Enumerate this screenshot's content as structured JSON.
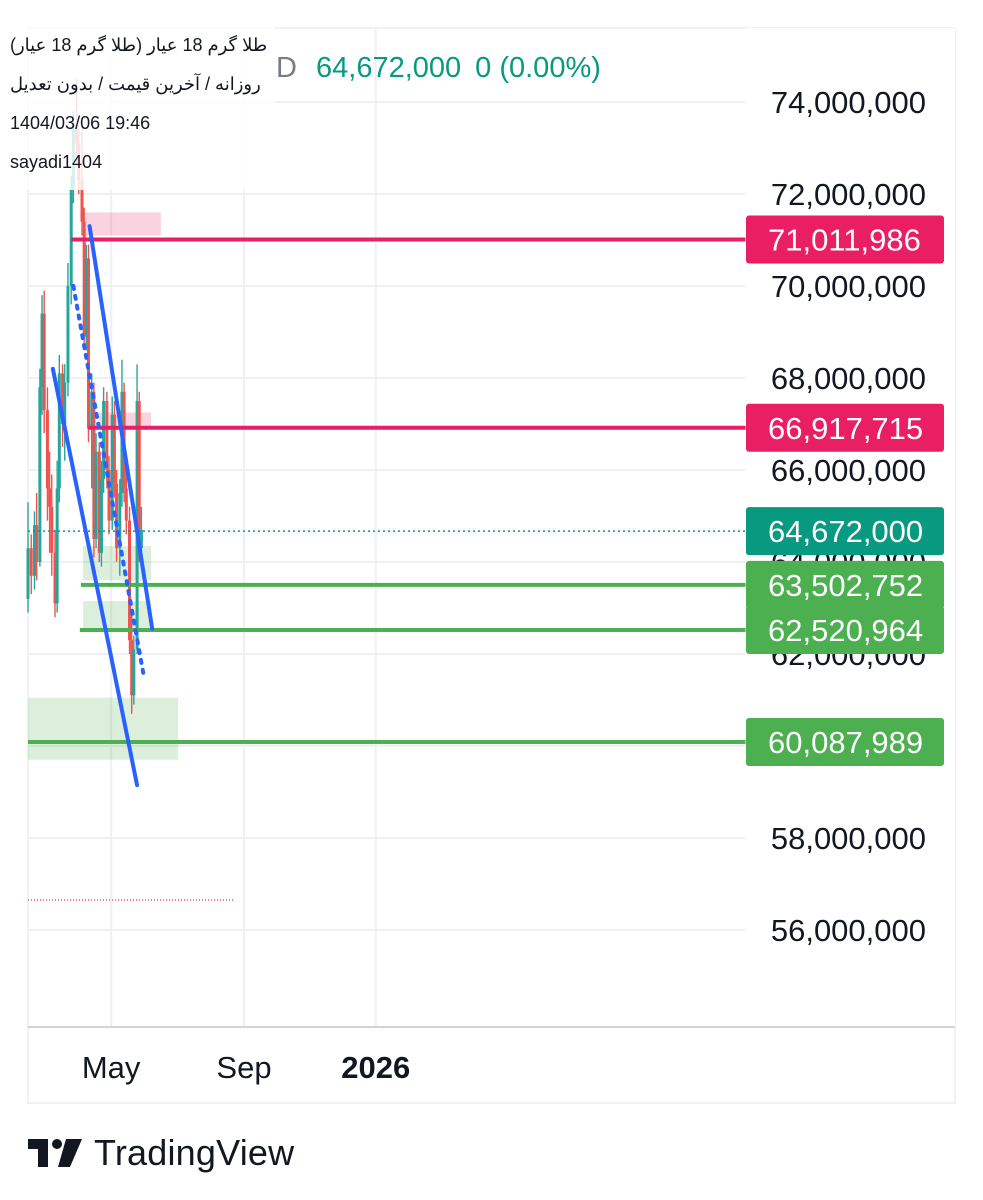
{
  "header": {
    "symbol_name": "طلا گرم 18 عیار (طلا گرم 18 عیار)",
    "settings": "روزانه / آخرین قیمت / بدون تعدیل",
    "datetime": "1404/03/06 19:46",
    "author": "sayadi1404",
    "ticker_fragment": "D",
    "last_price": "64,672,000",
    "change": "0 (0.00%)"
  },
  "brand": {
    "name": "TradingView"
  },
  "colors": {
    "grid": "#eef0f3",
    "up": "#26a69a",
    "down": "#ef5350",
    "resistance": "#e91e63",
    "support": "#4caf50",
    "trend": "#2962ff",
    "price_line": "#089981"
  },
  "chart_data": {
    "type": "candlestick",
    "y_axis": {
      "min": 55000000,
      "max": 75000000,
      "ticks": [
        56000000,
        58000000,
        60000000,
        62000000,
        64000000,
        66000000,
        68000000,
        70000000,
        72000000,
        74000000
      ],
      "tick_labels": [
        "56,000,000",
        "58,000,000",
        "60,000,000",
        "62,000,000",
        "64,000,000",
        "66,000,000",
        "68,000,000",
        "70,000,000",
        "72,000,000",
        "74,000,000"
      ]
    },
    "x_axis": {
      "labels": [
        "May",
        "Sep",
        "2026"
      ],
      "label_dates": [
        "2025-05-01",
        "2025-09-01",
        "2026-01-01"
      ],
      "start_date": "2025-02-13",
      "end_date": "2026-01-31"
    },
    "grid": true,
    "last_price": 64672000,
    "price_labels": [
      {
        "value": 71011986,
        "label": "71,011,986",
        "kind": "resistance"
      },
      {
        "value": 66917715,
        "label": "66,917,715",
        "kind": "resistance"
      },
      {
        "value": 64672000,
        "label": "64,672,000",
        "kind": "last"
      },
      {
        "value": 63502752,
        "label": "63,502,752",
        "kind": "support"
      },
      {
        "value": 62520964,
        "label": "62,520,964",
        "kind": "support"
      },
      {
        "value": 60087989,
        "label": "60,087,989",
        "kind": "support"
      }
    ],
    "horizontal_levels": [
      {
        "value": 71011986,
        "from": "2025-03-25",
        "kind": "resistance"
      },
      {
        "value": 66917715,
        "from": "2025-04-10",
        "kind": "resistance"
      },
      {
        "value": 63502752,
        "from": "2025-04-03",
        "kind": "support"
      },
      {
        "value": 62520964,
        "from": "2025-04-02",
        "kind": "support"
      },
      {
        "value": 60087989,
        "from": "2025-02-13",
        "kind": "support"
      }
    ],
    "zones": [
      {
        "from": "2025-04-05",
        "to": "2025-06-16",
        "high": 71600000,
        "low": 71100000,
        "kind": "resistance"
      },
      {
        "from": "2025-04-20",
        "to": "2025-06-07",
        "high": 67250000,
        "low": 66950000,
        "kind": "resistance"
      },
      {
        "from": "2025-04-05",
        "to": "2025-06-07",
        "high": 64350000,
        "low": 63600000,
        "kind": "support"
      },
      {
        "from": "2025-04-05",
        "to": "2025-06-07",
        "high": 63150000,
        "low": 62550000,
        "kind": "support"
      },
      {
        "from": "2025-02-13",
        "to": "2025-07-02",
        "high": 61050000,
        "low": 59700000,
        "kind": "support"
      }
    ],
    "trendlines": [
      {
        "start": [
          "2025-04-11",
          71300000
        ],
        "end": [
          "2025-06-08",
          62550000
        ],
        "style": "solid"
      },
      {
        "start": [
          "2025-03-08",
          68200000
        ],
        "end": [
          "2025-05-25",
          59150000
        ],
        "style": "solid"
      },
      {
        "start": [
          "2025-03-27",
          70000000
        ],
        "end": [
          "2025-05-31",
          61550000
        ],
        "style": "dotted"
      }
    ],
    "candles": [
      {
        "date": "2025-02-13",
        "o": 63200000,
        "h": 65300000,
        "l": 62900000,
        "c": 64300000
      },
      {
        "date": "2025-02-16",
        "o": 64300000,
        "h": 64600000,
        "l": 63300000,
        "c": 63700000
      },
      {
        "date": "2025-02-19",
        "o": 63700000,
        "h": 65100000,
        "l": 63400000,
        "c": 64800000
      },
      {
        "date": "2025-02-21",
        "o": 64800000,
        "h": 65500000,
        "l": 63600000,
        "c": 64000000
      },
      {
        "date": "2025-02-24",
        "o": 64000000,
        "h": 68200000,
        "l": 63900000,
        "c": 67800000
      },
      {
        "date": "2025-02-26",
        "o": 67800000,
        "h": 69800000,
        "l": 67200000,
        "c": 69400000
      },
      {
        "date": "2025-02-28",
        "o": 69400000,
        "h": 69900000,
        "l": 66800000,
        "c": 67300000
      },
      {
        "date": "2025-03-03",
        "o": 67300000,
        "h": 67800000,
        "l": 64900000,
        "c": 65600000
      },
      {
        "date": "2025-03-05",
        "o": 65600000,
        "h": 66400000,
        "l": 64200000,
        "c": 65200000
      },
      {
        "date": "2025-03-07",
        "o": 65200000,
        "h": 65900000,
        "l": 63700000,
        "c": 64200000
      },
      {
        "date": "2025-03-10",
        "o": 64200000,
        "h": 64700000,
        "l": 62800000,
        "c": 63100000
      },
      {
        "date": "2025-03-12",
        "o": 63100000,
        "h": 66200000,
        "l": 62900000,
        "c": 65600000
      },
      {
        "date": "2025-03-14",
        "o": 65600000,
        "h": 68500000,
        "l": 65300000,
        "c": 68100000
      },
      {
        "date": "2025-03-17",
        "o": 68100000,
        "h": 68300000,
        "l": 66500000,
        "c": 67000000
      },
      {
        "date": "2025-03-19",
        "o": 67000000,
        "h": 68300000,
        "l": 66200000,
        "c": 67900000
      },
      {
        "date": "2025-03-22",
        "o": 67900000,
        "h": 70500000,
        "l": 67600000,
        "c": 70000000
      },
      {
        "date": "2025-03-25",
        "o": 70000000,
        "h": 72400000,
        "l": 69600000,
        "c": 72100000
      },
      {
        "date": "2025-03-27",
        "o": 72100000,
        "h": 73800000,
        "l": 71800000,
        "c": 73500000
      },
      {
        "date": "2025-03-30",
        "o": 73500000,
        "h": 74500000,
        "l": 72600000,
        "c": 73100000
      },
      {
        "date": "2025-04-01",
        "o": 73100000,
        "h": 73400000,
        "l": 72000000,
        "c": 72300000
      },
      {
        "date": "2025-04-04",
        "o": 72300000,
        "h": 73500000,
        "l": 71100000,
        "c": 71400000
      },
      {
        "date": "2025-04-06",
        "o": 71400000,
        "h": 71700000,
        "l": 68600000,
        "c": 68900000
      },
      {
        "date": "2025-04-08",
        "o": 68900000,
        "h": 70900000,
        "l": 68600000,
        "c": 70600000
      },
      {
        "date": "2025-04-10",
        "o": 70600000,
        "h": 70900000,
        "l": 66600000,
        "c": 66900000
      },
      {
        "date": "2025-04-13",
        "o": 66900000,
        "h": 68100000,
        "l": 65600000,
        "c": 67700000
      },
      {
        "date": "2025-04-15",
        "o": 67700000,
        "h": 67900000,
        "l": 64100000,
        "c": 64500000
      },
      {
        "date": "2025-04-17",
        "o": 64500000,
        "h": 66800000,
        "l": 64300000,
        "c": 66400000
      },
      {
        "date": "2025-04-20",
        "o": 66400000,
        "h": 66600000,
        "l": 64000000,
        "c": 64200000
      },
      {
        "date": "2025-04-22",
        "o": 64200000,
        "h": 66200000,
        "l": 63900000,
        "c": 65800000
      },
      {
        "date": "2025-04-24",
        "o": 65800000,
        "h": 67800000,
        "l": 65500000,
        "c": 67500000
      },
      {
        "date": "2025-04-27",
        "o": 67500000,
        "h": 67700000,
        "l": 65600000,
        "c": 66000000
      },
      {
        "date": "2025-04-29",
        "o": 66000000,
        "h": 66300000,
        "l": 64600000,
        "c": 64900000
      },
      {
        "date": "2025-05-02",
        "o": 64900000,
        "h": 67600000,
        "l": 64700000,
        "c": 67200000
      },
      {
        "date": "2025-05-04",
        "o": 67200000,
        "h": 67500000,
        "l": 65400000,
        "c": 65700000
      },
      {
        "date": "2025-05-06",
        "o": 65700000,
        "h": 66000000,
        "l": 64000000,
        "c": 64300000
      },
      {
        "date": "2025-05-09",
        "o": 64300000,
        "h": 65800000,
        "l": 63700000,
        "c": 65500000
      },
      {
        "date": "2025-05-11",
        "o": 65500000,
        "h": 68400000,
        "l": 65200000,
        "c": 67700000
      },
      {
        "date": "2025-05-13",
        "o": 67700000,
        "h": 67900000,
        "l": 65300000,
        "c": 65600000
      },
      {
        "date": "2025-05-15",
        "o": 65600000,
        "h": 66000000,
        "l": 64600000,
        "c": 64900000
      },
      {
        "date": "2025-05-18",
        "o": 64900000,
        "h": 65200000,
        "l": 62000000,
        "c": 62300000
      },
      {
        "date": "2025-05-20",
        "o": 62300000,
        "h": 62900000,
        "l": 60700000,
        "c": 61100000
      },
      {
        "date": "2025-05-22",
        "o": 61100000,
        "h": 62400000,
        "l": 60900000,
        "c": 62100000
      },
      {
        "date": "2025-05-25",
        "o": 62100000,
        "h": 68300000,
        "l": 62000000,
        "c": 67500000
      },
      {
        "date": "2025-05-27",
        "o": 67500000,
        "h": 67700000,
        "l": 64000000,
        "c": 64300000
      },
      {
        "date": "2025-05-29",
        "o": 64300000,
        "h": 65200000,
        "l": 63900000,
        "c": 64700000
      }
    ]
  }
}
